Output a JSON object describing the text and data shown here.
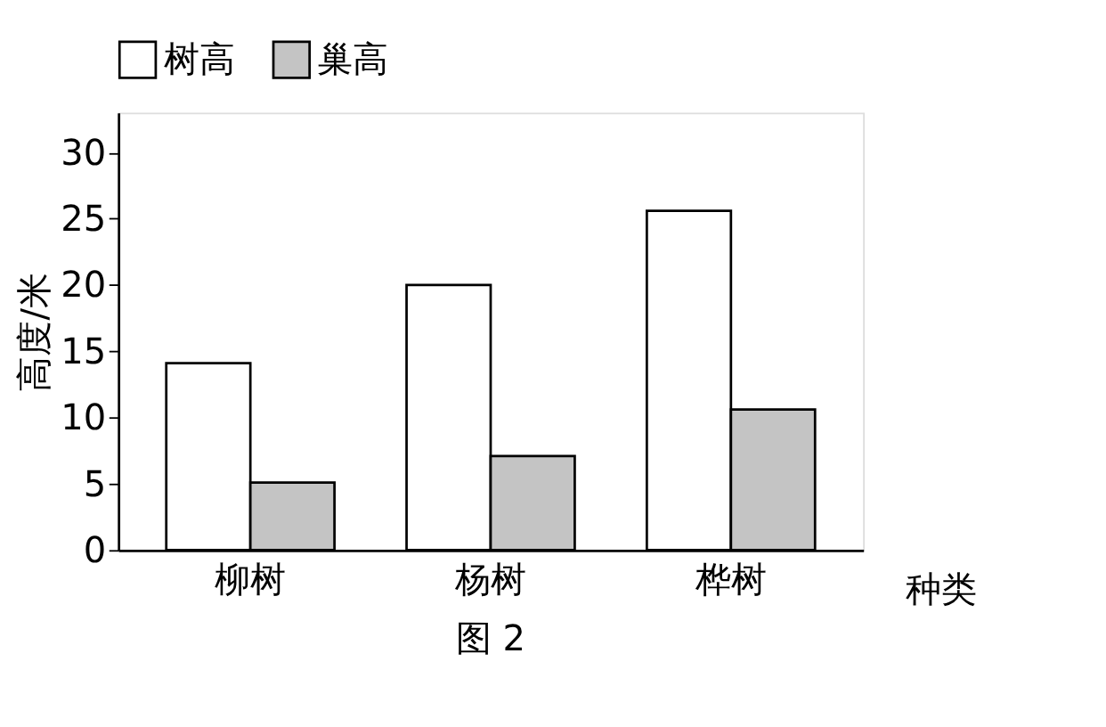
{
  "chart_data": {
    "type": "bar",
    "categories": [
      "柳树",
      "杨树",
      "桦树"
    ],
    "xlabel": "种类",
    "ylabel": "高度/米",
    "series": [
      {
        "name": "树高",
        "color": "#ffffff",
        "values": [
          14.1,
          20,
          25.6
        ]
      },
      {
        "name": "巢高",
        "color": "#c4c4c4",
        "values": [
          5.1,
          7.1,
          10.6
        ]
      }
    ],
    "ylim": [
      0,
      33
    ],
    "yticks": [
      0,
      5,
      10,
      15,
      20,
      25,
      30
    ],
    "grid": false,
    "legend": "top",
    "annotations": [
      "图 2"
    ]
  }
}
